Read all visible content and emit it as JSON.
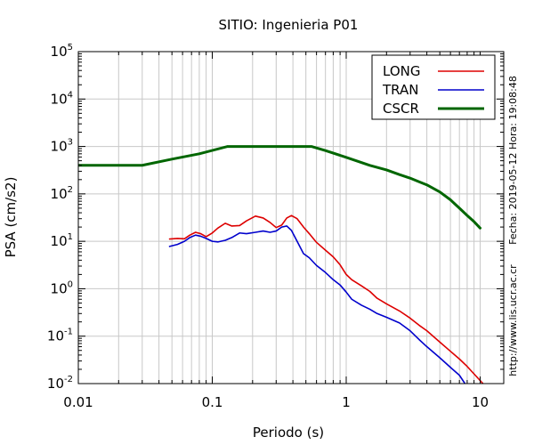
{
  "chart_data": {
    "type": "line",
    "title": "SITIO: Ingenieria P01",
    "xlabel": "Periodo (s)",
    "ylabel": "PSA (cm/s2)",
    "xscale": "log",
    "yscale": "log",
    "xlim": [
      0.01,
      15
    ],
    "ylim": [
      0.01,
      100000
    ],
    "grid": true,
    "legend_position": "top-right",
    "x_ticks": [
      {
        "value": 0.01,
        "label": "0.01"
      },
      {
        "value": 0.1,
        "label": "0.1"
      },
      {
        "value": 1,
        "label": "1"
      },
      {
        "value": 10,
        "label": "10"
      }
    ],
    "y_ticks": [
      {
        "value": 0.01,
        "base": "10",
        "exp": "-2"
      },
      {
        "value": 0.1,
        "base": "10",
        "exp": "-1"
      },
      {
        "value": 1,
        "base": "10",
        "exp": "0"
      },
      {
        "value": 10,
        "base": "10",
        "exp": "1"
      },
      {
        "value": 100,
        "base": "10",
        "exp": "2"
      },
      {
        "value": 1000,
        "base": "10",
        "exp": "3"
      },
      {
        "value": 10000,
        "base": "10",
        "exp": "4"
      },
      {
        "value": 100000,
        "base": "10",
        "exp": "5"
      }
    ],
    "series": [
      {
        "name": "LONG",
        "color": "#dd0000",
        "points": [
          [
            0.048,
            11.2
          ],
          [
            0.055,
            11.5
          ],
          [
            0.062,
            11.3
          ],
          [
            0.068,
            13.5
          ],
          [
            0.075,
            15.5
          ],
          [
            0.082,
            14.5
          ],
          [
            0.09,
            12.5
          ],
          [
            0.1,
            15
          ],
          [
            0.11,
            19
          ],
          [
            0.125,
            24
          ],
          [
            0.14,
            21
          ],
          [
            0.16,
            21.5
          ],
          [
            0.18,
            27
          ],
          [
            0.21,
            34
          ],
          [
            0.24,
            31
          ],
          [
            0.27,
            25
          ],
          [
            0.3,
            19.5
          ],
          [
            0.33,
            22
          ],
          [
            0.36,
            31
          ],
          [
            0.39,
            35
          ],
          [
            0.43,
            30
          ],
          [
            0.48,
            20
          ],
          [
            0.53,
            14.5
          ],
          [
            0.6,
            9.5
          ],
          [
            0.7,
            6.5
          ],
          [
            0.8,
            4.7
          ],
          [
            0.9,
            3.2
          ],
          [
            1.0,
            2.0
          ],
          [
            1.1,
            1.55
          ],
          [
            1.3,
            1.15
          ],
          [
            1.5,
            0.88
          ],
          [
            1.7,
            0.63
          ],
          [
            2.0,
            0.48
          ],
          [
            2.5,
            0.34
          ],
          [
            3.0,
            0.24
          ],
          [
            3.5,
            0.17
          ],
          [
            4.0,
            0.13
          ],
          [
            5.0,
            0.075
          ],
          [
            6.0,
            0.048
          ],
          [
            7.0,
            0.033
          ],
          [
            8.0,
            0.023
          ],
          [
            9.0,
            0.016
          ],
          [
            10.5,
            0.01
          ]
        ]
      },
      {
        "name": "TRAN",
        "color": "#0000cc",
        "points": [
          [
            0.048,
            7.8
          ],
          [
            0.055,
            8.6
          ],
          [
            0.062,
            10.0
          ],
          [
            0.068,
            12.0
          ],
          [
            0.075,
            13.5
          ],
          [
            0.082,
            12.8
          ],
          [
            0.09,
            11.5
          ],
          [
            0.1,
            10
          ],
          [
            0.11,
            9.7
          ],
          [
            0.125,
            10.5
          ],
          [
            0.14,
            12
          ],
          [
            0.16,
            15
          ],
          [
            0.18,
            14.5
          ],
          [
            0.21,
            15.5
          ],
          [
            0.24,
            16.5
          ],
          [
            0.27,
            15.5
          ],
          [
            0.3,
            16.5
          ],
          [
            0.33,
            20
          ],
          [
            0.36,
            21
          ],
          [
            0.39,
            17
          ],
          [
            0.43,
            10
          ],
          [
            0.48,
            5.5
          ],
          [
            0.53,
            4.5
          ],
          [
            0.6,
            3.1
          ],
          [
            0.7,
            2.2
          ],
          [
            0.8,
            1.55
          ],
          [
            0.9,
            1.2
          ],
          [
            1.0,
            0.85
          ],
          [
            1.1,
            0.6
          ],
          [
            1.3,
            0.45
          ],
          [
            1.5,
            0.37
          ],
          [
            1.7,
            0.3
          ],
          [
            2.0,
            0.25
          ],
          [
            2.5,
            0.19
          ],
          [
            3.0,
            0.13
          ],
          [
            3.5,
            0.085
          ],
          [
            4.0,
            0.06
          ],
          [
            5.0,
            0.035
          ],
          [
            6.0,
            0.022
          ],
          [
            7.0,
            0.015
          ],
          [
            7.7,
            0.01
          ]
        ]
      },
      {
        "name": "CSCR",
        "color": "#006600",
        "points": [
          [
            0.01,
            400
          ],
          [
            0.03,
            400
          ],
          [
            0.05,
            540
          ],
          [
            0.08,
            700
          ],
          [
            0.13,
            1000
          ],
          [
            0.55,
            1000
          ],
          [
            0.7,
            820
          ],
          [
            1.0,
            590
          ],
          [
            1.5,
            400
          ],
          [
            2.0,
            320
          ],
          [
            2.5,
            255
          ],
          [
            3.0,
            215
          ],
          [
            3.5,
            180
          ],
          [
            4.0,
            155
          ],
          [
            5.0,
            110
          ],
          [
            6.0,
            75
          ],
          [
            7.0,
            50
          ],
          [
            8.0,
            35
          ],
          [
            9.0,
            26
          ],
          [
            10.0,
            19
          ]
        ]
      }
    ]
  },
  "side_text": {
    "date": "Fecha: 2019-05-12  Hora: 19:08:48",
    "url": "http://www.lis.ucr.ac.cr"
  }
}
